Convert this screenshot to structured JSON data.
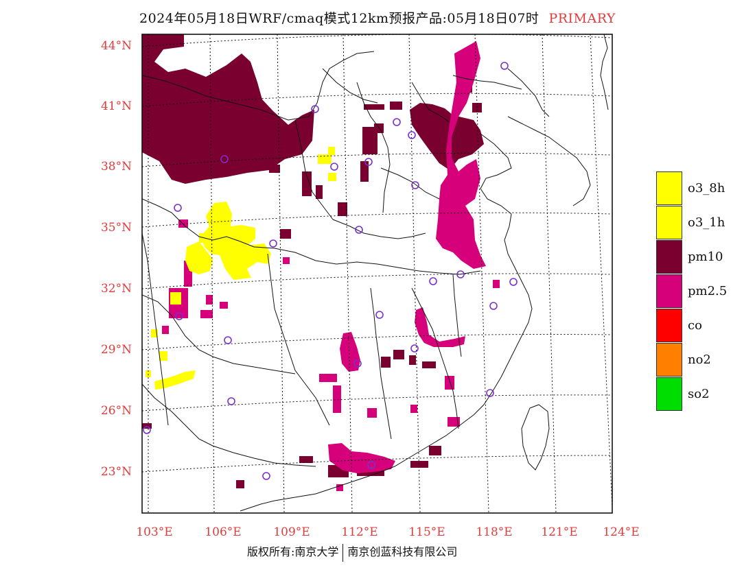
{
  "title": {
    "main": "2024年05月18日WRF/cmaq模式12km预报产品:05月18日07时",
    "tag": "PRIMARY"
  },
  "lat_labels": [
    "44°N",
    "41°N",
    "38°N",
    "35°N",
    "32°N",
    "29°N",
    "26°N",
    "23°N"
  ],
  "lon_labels": [
    "103°E",
    "106°E",
    "109°E",
    "112°E",
    "115°E",
    "118°E",
    "121°E",
    "124°E"
  ],
  "legend": [
    {
      "label": "o3_8h",
      "color": "#ffff00"
    },
    {
      "label": "o3_1h",
      "color": "#ffff00"
    },
    {
      "label": "pm10",
      "color": "#7a0030"
    },
    {
      "label": "pm2.5",
      "color": "#d6007a"
    },
    {
      "label": "co",
      "color": "#ff0000"
    },
    {
      "label": "no2",
      "color": "#ff7f00"
    },
    {
      "label": "so2",
      "color": "#00dd00"
    }
  ],
  "footer": {
    "left": "版权所有:南京大学",
    "right": "南京创蓝科技有限公司"
  },
  "colors": {
    "axis_label": "#e23b3b",
    "pm10": "#7a0030",
    "pm25": "#d6007a",
    "o3": "#ffff00",
    "station": "#7b2fd0"
  }
}
